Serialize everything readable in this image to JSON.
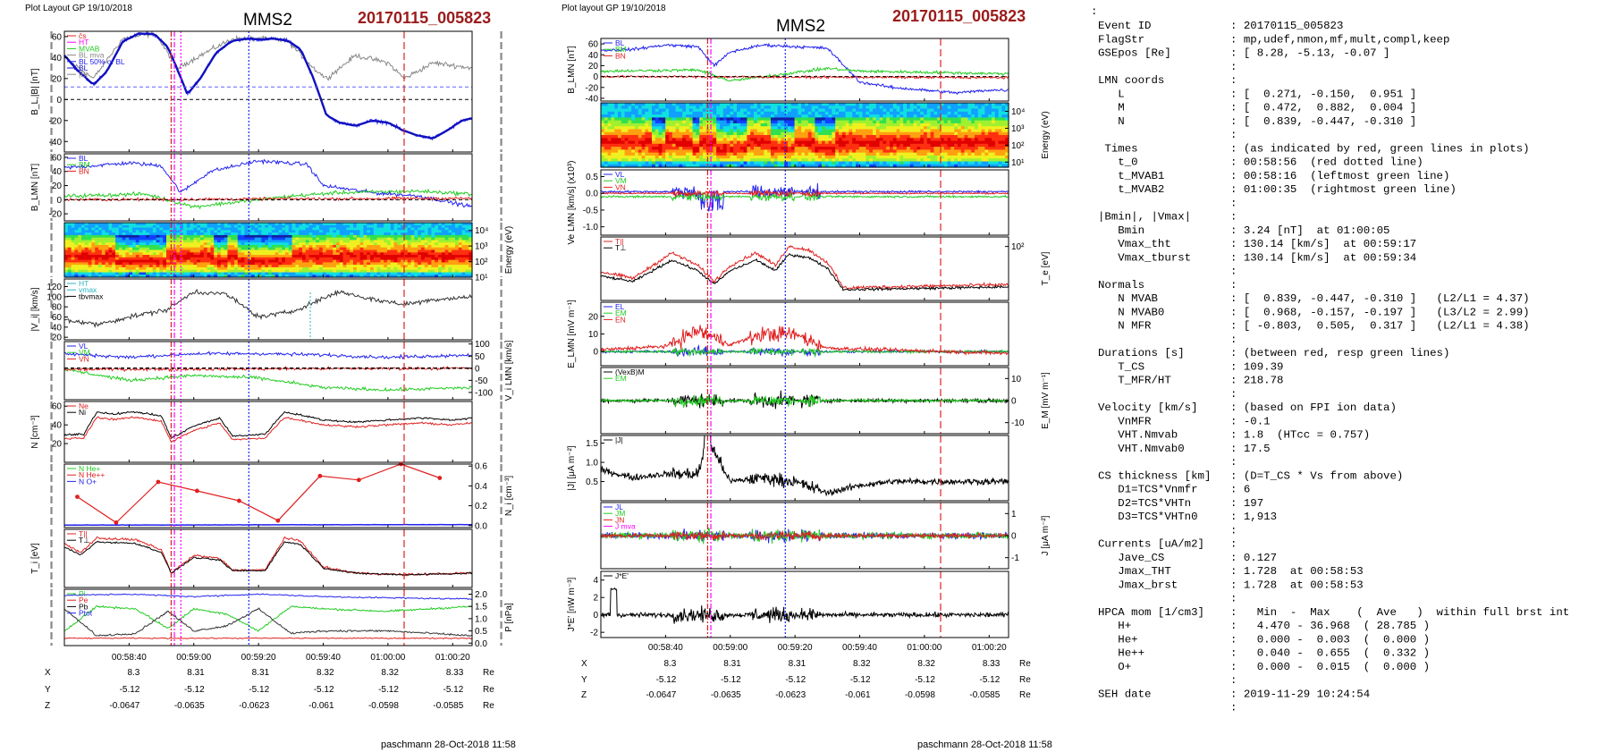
{
  "page": {
    "footer": "paschmann 28-Oct-2018 11:58",
    "colon": ":"
  },
  "left_plot": {
    "layout_label": "Plot Layout GP 19/10/2018",
    "spacecraft": "MMS2",
    "event": "20170115_005823",
    "time_ticks": [
      "00:58:40",
      "00:59:00",
      "00:59:20",
      "00:59:40",
      "01:00:00",
      "01:00:20"
    ],
    "panels": [
      {
        "ylabel": "B_L,|B| [nT]",
        "ylim": [
          -50,
          65
        ],
        "yticks": [
          "60",
          "40",
          "20",
          "0",
          "-20",
          "-40"
        ],
        "yvals": [
          60,
          40,
          20,
          0,
          -20,
          -40
        ],
        "legend": [
          "c̆s",
          "HT",
          "MVAB",
          "BL mva",
          "BL 50% of BL",
          "BL",
          "|B|"
        ],
        "legend_colors": [
          "#e02020",
          "#ff00ff",
          "#22cc22",
          "#888888",
          "#2222ee",
          "#1010c0",
          "#888888"
        ]
      },
      {
        "ylabel": "B_LMN [nT]",
        "ylim": [
          -30,
          65
        ],
        "yticks": [
          "60",
          "40",
          "20",
          "0",
          "-20"
        ],
        "yvals": [
          60,
          40,
          20,
          0,
          -20
        ],
        "legend": [
          "BL",
          "BM",
          "BN"
        ],
        "legend_colors": [
          "#2222ee",
          "#22cc22",
          "#e02020"
        ]
      },
      {
        "ylabel": "Energy (eV)",
        "ylim": [
          1,
          4.5
        ],
        "yticks": [
          "10⁴",
          "10³",
          "10²",
          "10¹"
        ],
        "yvals": [
          4,
          3,
          2,
          1
        ],
        "legend": [],
        "legend_colors": []
      },
      {
        "ylabel": "|V_i| [km/s]",
        "ylim": [
          15,
          135
        ],
        "yticks": [
          "120",
          "100",
          "80",
          "60",
          "40",
          "20"
        ],
        "yvals": [
          120,
          100,
          80,
          60,
          40,
          20
        ],
        "legend": [
          "HT",
          "vmax",
          "tbvmax"
        ],
        "legend_colors": [
          "#2ab5c0",
          "#2ab5c0",
          "#000000"
        ]
      },
      {
        "ylabel": "V_i LMN [km/s]",
        "ylim": [
          -130,
          110
        ],
        "yticks": [
          "100",
          "50",
          "0",
          "-50",
          "-100"
        ],
        "yvals": [
          100,
          50,
          0,
          -50,
          -100
        ],
        "legend": [
          "VL",
          "VM",
          "VN"
        ],
        "legend_colors": [
          "#2222ee",
          "#22cc22",
          "#e02020"
        ]
      },
      {
        "ylabel": "N [cm⁻³]",
        "ylim": [
          0,
          65
        ],
        "yticks": [
          "60",
          "40",
          "20"
        ],
        "yvals": [
          60,
          40,
          20
        ],
        "legend": [
          "Ne",
          "Ni"
        ],
        "legend_colors": [
          "#e02020",
          "#000000"
        ]
      },
      {
        "ylabel": "N_i [cm⁻³]",
        "ylim": [
          -0.02,
          0.62
        ],
        "yticks": [
          "0.6",
          "0.4",
          "0.2",
          "0.0"
        ],
        "yvals": [
          0.6,
          0.4,
          0.2,
          0.0
        ],
        "legend": [
          "N He+",
          "N He++",
          "N O+"
        ],
        "legend_colors": [
          "#22cc22",
          "#e02020",
          "#2222ee"
        ]
      },
      {
        "ylabel": "T_i [eV]",
        "ylim": [
          0,
          1
        ],
        "yticks": [],
        "yvals": [],
        "legend": [
          "T||",
          "T⊥"
        ],
        "legend_colors": [
          "#e02020",
          "#000000"
        ]
      },
      {
        "ylabel": "P [nPa]",
        "ylim": [
          -0.1,
          2.2
        ],
        "yticks": [
          "2.0",
          "1.5",
          "1.0",
          "0.5",
          "0.0"
        ],
        "yvals": [
          2.0,
          1.5,
          1.0,
          0.5,
          0.0
        ],
        "legend": [
          "Pi",
          "Pe",
          "Pb",
          "Ptot"
        ],
        "legend_colors": [
          "#22cc22",
          "#e02020",
          "#000000",
          "#2222ee"
        ]
      }
    ],
    "ephem_rows": [
      {
        "name": "X",
        "vals": [
          "8.3",
          "8.31",
          "8.31",
          "8.32",
          "8.32",
          "8.33"
        ],
        "unit": "Re"
      },
      {
        "name": "Y",
        "vals": [
          "-5.12",
          "-5.12",
          "-5.12",
          "-5.12",
          "-5.12",
          "-5.12"
        ],
        "unit": "Re"
      },
      {
        "name": "Z",
        "vals": [
          "-0.0647",
          "-0.0635",
          "-0.0623",
          "-0.061",
          "-0.0598",
          "-0.0585"
        ],
        "unit": "Re"
      }
    ]
  },
  "right_plot": {
    "layout_label": "Plot layout GP 19/10/2018",
    "spacecraft": "MMS2",
    "event": "20170115_005823",
    "time_ticks": [
      "00:58:40",
      "00:59:00",
      "00:59:20",
      "00:59:40",
      "01:00:00",
      "01:00:20"
    ],
    "panels": [
      {
        "ylabel": "B_LMN [nT]",
        "ylim": [
          -45,
          70
        ],
        "yticks": [
          "60",
          "40",
          "20",
          "0",
          "-20",
          "-40"
        ],
        "yvals": [
          60,
          40,
          20,
          0,
          -20,
          -40
        ],
        "legend": [
          "BL",
          "BM",
          "BN"
        ],
        "legend_colors": [
          "#2222ee",
          "#22cc22",
          "#e02020"
        ]
      },
      {
        "ylabel": "Energy (eV)",
        "ylim": [
          0.7,
          4.5
        ],
        "yticks": [
          "10⁴",
          "10³",
          "10²",
          "10¹"
        ],
        "yvals": [
          4,
          3,
          2,
          1
        ],
        "legend": [],
        "legend_colors": []
      },
      {
        "ylabel": "Ve LMN [km/s] (x10³)",
        "ylim": [
          -1.25,
          0.7
        ],
        "yticks": [
          "0.5",
          "0.0",
          "-0.5",
          "-1.0"
        ],
        "yvals": [
          0.5,
          0.0,
          -0.5,
          -1.0
        ],
        "legend": [
          "VL",
          "VM",
          "VN"
        ],
        "legend_colors": [
          "#2222ee",
          "#22cc22",
          "#e02020"
        ]
      },
      {
        "ylabel": "T_e [eV]",
        "ylim": [
          0,
          1
        ],
        "yticks": [
          "10²"
        ],
        "yvals": [
          0.85
        ],
        "legend": [
          "T||",
          "T⊥"
        ],
        "legend_colors": [
          "#e02020",
          "#000000"
        ]
      },
      {
        "ylabel": "E_LMN [mV m⁻¹]",
        "ylim": [
          -8,
          28
        ],
        "yticks": [
          "20",
          "10",
          "0"
        ],
        "yvals": [
          20,
          10,
          0
        ],
        "legend": [
          "EL",
          "EM",
          "EN"
        ],
        "legend_colors": [
          "#2222ee",
          "#22cc22",
          "#e02020"
        ]
      },
      {
        "ylabel": "E_M [mV m⁻¹]",
        "ylim": [
          -15,
          15
        ],
        "yticks": [
          "10",
          "0",
          "-10"
        ],
        "yvals": [
          10,
          0,
          -10
        ],
        "legend": [
          "(VexB)M",
          "EM"
        ],
        "legend_colors": [
          "#000000",
          "#22cc22"
        ]
      },
      {
        "ylabel": "|J| [μA m⁻²]",
        "ylim": [
          0,
          1.7
        ],
        "yticks": [
          "1.5",
          "1.0",
          "0.5"
        ],
        "yvals": [
          1.5,
          1.0,
          0.5
        ],
        "legend": [
          "|J|"
        ],
        "legend_colors": [
          "#000000"
        ]
      },
      {
        "ylabel": "J [μA m⁻²]",
        "ylim": [
          -1.5,
          1.5
        ],
        "yticks": [
          "1",
          "0",
          "-1"
        ],
        "yvals": [
          1,
          0,
          -1
        ],
        "legend": [
          "JL",
          "JM",
          "JN",
          "J mva"
        ],
        "legend_colors": [
          "#2222ee",
          "#22cc22",
          "#e02020",
          "#ff00ff"
        ]
      },
      {
        "ylabel": "J*E' [nW m⁻³]",
        "ylim": [
          -2.6,
          5
        ],
        "yticks": [
          "4",
          "2",
          "0",
          "-2"
        ],
        "yvals": [
          4,
          2,
          0,
          -2
        ],
        "legend": [
          "J*E'"
        ],
        "legend_colors": [
          "#000000"
        ]
      }
    ],
    "ephem_rows": [
      {
        "name": "X",
        "vals": [
          "8.3",
          "8.31",
          "8.31",
          "8.32",
          "8.32",
          "8.33"
        ],
        "unit": "Re"
      },
      {
        "name": "Y",
        "vals": [
          "-5.12",
          "-5.12",
          "-5.12",
          "-5.12",
          "-5.12",
          "-5.12"
        ],
        "unit": "Re"
      },
      {
        "name": "Z",
        "vals": [
          "-0.0647",
          "-0.0635",
          "-0.0623",
          "-0.061",
          "-0.0598",
          "-0.0585"
        ],
        "unit": "Re"
      }
    ]
  },
  "info_lines": [
    [
      "Event ID",
      ": 20170115_005823"
    ],
    [
      "FlagStr",
      ": mp,udef,nmon,mf,mult,compl,keep"
    ],
    [
      "GSEpos [Re]",
      ": [ 8.28, -5.13, -0.07 ]"
    ],
    [
      "",
      ":"
    ],
    [
      "LMN coords",
      ":"
    ],
    [
      "   L",
      ": [  0.271, -0.150,  0.951 ]"
    ],
    [
      "   M",
      ": [  0.472,  0.882,  0.004 ]"
    ],
    [
      "   N",
      ": [  0.839, -0.447, -0.310 ]"
    ],
    [
      "",
      ":"
    ],
    [
      " Times",
      ": (as indicated by red, green lines in plots)"
    ],
    [
      "   t_0",
      ": 00:58:56  (red dotted line)"
    ],
    [
      "   t_MVAB1",
      ": 00:58:16  (leftmost green line)"
    ],
    [
      "   t_MVAB2",
      ": 01:00:35  (rightmost green line)"
    ],
    [
      "",
      ":"
    ],
    [
      "|Bmin|, |Vmax|",
      ":"
    ],
    [
      "   Bmin",
      ": 3.24 [nT]  at 01:00:05"
    ],
    [
      "   Vmax_tht",
      ": 130.14 [km/s]  at 00:59:17"
    ],
    [
      "   Vmax_tburst",
      ": 130.14 [km/s]  at 00:59:34"
    ],
    [
      "",
      ":"
    ],
    [
      "Normals",
      ":"
    ],
    [
      "   N MVAB",
      ": [  0.839, -0.447, -0.310 ]   (L2/L1 = 4.37)"
    ],
    [
      "   N MVAB0",
      ": [  0.968, -0.157, -0.197 ]   (L3/L2 = 2.99)"
    ],
    [
      "   N MFR",
      ": [ -0.803,  0.505,  0.317 ]   (L2/L1 = 4.38)"
    ],
    [
      "",
      ":"
    ],
    [
      "Durations [s]",
      ": (between red, resp green lines)"
    ],
    [
      "   T_CS",
      ": 109.39"
    ],
    [
      "   T_MFR/HT",
      ": 218.78"
    ],
    [
      "",
      ":"
    ],
    [
      "Velocity [km/s]",
      ": (based on FPI ion data)"
    ],
    [
      "   VnMFR",
      ": -0.1"
    ],
    [
      "   VHT.Nmvab",
      ": 1.8  (HTcc = 0.757)"
    ],
    [
      "   VHT.Nmvab0",
      ": 17.5"
    ],
    [
      "",
      ":"
    ],
    [
      "CS thickness [km]",
      ": (D=T_CS * Vs from above)"
    ],
    [
      "   D1=TCS*Vnmfr",
      ": 6"
    ],
    [
      "   D2=TCS*VHTn",
      ": 197"
    ],
    [
      "   D3=TCS*VHTn0",
      ": 1,913"
    ],
    [
      "",
      ":"
    ],
    [
      "Currents [uA/m2]",
      ":"
    ],
    [
      "   Jave_CS",
      ": 0.127"
    ],
    [
      "   Jmax_THT",
      ": 1.728  at 00:58:53"
    ],
    [
      "   Jmax_brst",
      ": 1.728  at 00:58:53"
    ],
    [
      "",
      ":"
    ],
    [
      "HPCA mom [1/cm3]",
      ":   Min  -  Max    (  Ave   )  within full brst int"
    ],
    [
      "   H+",
      ":   4.470 - 36.968  ( 28.785 )"
    ],
    [
      "   He+",
      ":   0.000 -  0.003  (  0.000 )"
    ],
    [
      "   He++",
      ":   0.040 -  0.655  (  0.332 )"
    ],
    [
      "   O+",
      ":   0.000 -  0.015  (  0.000 )"
    ],
    [
      "",
      ":"
    ],
    [
      "SEH date",
      ": 2019-11-29 10:24:54"
    ],
    [
      "",
      ":"
    ]
  ],
  "chart_data": [
    {
      "type": "line",
      "title": "MMS2",
      "subtitle": "20170115_005823",
      "x_unit": "UT",
      "xlim": [
        "00:58:20",
        "01:00:26"
      ],
      "x_ticks": [
        "00:58:40",
        "00:59:00",
        "00:59:20",
        "00:59:40",
        "01:00:00",
        "01:00:20"
      ],
      "vertical_markers": [
        {
          "time": "00:58:16",
          "color": "#888888",
          "style": "dashed"
        },
        {
          "time": "00:58:53",
          "color": "#e02020",
          "style": "dashdot"
        },
        {
          "time": "00:58:54",
          "color": "#ff00ff",
          "style": "dashdot"
        },
        {
          "time": "00:58:56",
          "color": "#ff00ff",
          "style": "dotted"
        },
        {
          "time": "00:59:17",
          "color": "#2222ee",
          "style": "dotted"
        },
        {
          "time": "01:00:05",
          "color": "#e02020",
          "style": "dashed"
        },
        {
          "time": "01:00:35",
          "color": "#888888",
          "style": "dashed"
        }
      ],
      "series": [
        {
          "name": "BL",
          "panel": 0,
          "t": [
            "00:58:20",
            "00:58:24",
            "00:58:29",
            "00:58:33",
            "00:58:38",
            "00:58:43",
            "00:58:48",
            "00:58:52",
            "00:58:55",
            "00:58:58",
            "00:59:02",
            "00:59:07",
            "00:59:12",
            "00:59:17",
            "00:59:21",
            "00:59:25",
            "00:59:29",
            "00:59:33",
            "00:59:37",
            "00:59:41",
            "00:59:45",
            "00:59:50",
            "00:59:55",
            "01:00:00",
            "01:00:05",
            "01:00:10",
            "01:00:14",
            "01:00:18",
            "01:00:23",
            "01:00:26"
          ],
          "v": [
            42,
            28,
            14,
            26,
            55,
            63,
            62,
            50,
            28,
            5,
            20,
            45,
            56,
            58,
            57,
            58,
            56,
            48,
            20,
            -15,
            -22,
            -25,
            -20,
            -22,
            -30,
            -35,
            -37,
            -30,
            -20,
            -18
          ]
        },
        {
          "name": "|B|",
          "panel": 0,
          "t": [
            "00:58:20",
            "00:58:29",
            "00:58:38",
            "00:58:48",
            "00:58:55",
            "00:59:02",
            "00:59:12",
            "00:59:21",
            "00:59:29",
            "00:59:37",
            "00:59:41",
            "00:59:50",
            "01:00:00",
            "01:00:05",
            "01:00:14",
            "01:00:26"
          ],
          "v": [
            40,
            20,
            58,
            63,
            30,
            42,
            58,
            58,
            56,
            30,
            20,
            42,
            35,
            20,
            35,
            30
          ]
        },
        {
          "name": "Ne",
          "panel": 5,
          "t": [
            "00:58:20",
            "00:58:26",
            "00:58:30",
            "00:58:35",
            "00:58:42",
            "00:58:50",
            "00:58:53",
            "00:59:00",
            "00:59:08",
            "00:59:12",
            "00:59:22",
            "00:59:28",
            "00:59:33",
            "00:59:40",
            "00:59:50",
            "01:00:00",
            "01:00:10",
            "01:00:20",
            "01:00:26"
          ],
          "v": [
            25,
            26,
            48,
            46,
            48,
            44,
            22,
            34,
            42,
            24,
            26,
            48,
            45,
            40,
            38,
            40,
            42,
            40,
            42
          ]
        },
        {
          "name": "N He++",
          "panel": 6,
          "t": [
            "00:58:24",
            "00:58:36",
            "00:58:49",
            "00:59:01",
            "00:59:14",
            "00:59:26",
            "00:59:39",
            "00:59:51",
            "01:00:04",
            "01:00:16"
          ],
          "v": [
            0.29,
            0.03,
            0.44,
            0.35,
            0.25,
            0.05,
            0.5,
            0.46,
            0.62,
            0.48
          ]
        }
      ]
    },
    {
      "type": "line",
      "title": "MMS2",
      "subtitle": "20170115_005823",
      "x_unit": "UT",
      "xlim": [
        "00:58:20",
        "01:00:26"
      ],
      "x_ticks": [
        "00:58:40",
        "00:59:00",
        "00:59:20",
        "00:59:40",
        "01:00:00",
        "01:00:20"
      ],
      "series": [
        {
          "name": "BL",
          "panel": 0,
          "t": [
            "00:58:20",
            "00:58:30",
            "00:58:40",
            "00:58:50",
            "00:58:55",
            "00:59:00",
            "00:59:10",
            "00:59:20",
            "00:59:30",
            "00:59:40",
            "00:59:50",
            "01:00:00",
            "01:00:10",
            "01:00:20",
            "01:00:26"
          ],
          "v": [
            48,
            50,
            58,
            55,
            20,
            45,
            58,
            55,
            52,
            -10,
            -20,
            -25,
            -30,
            -25,
            -25
          ]
        },
        {
          "name": "|J|",
          "panel": 6,
          "t": [
            "00:58:20",
            "00:58:30",
            "00:58:40",
            "00:58:50",
            "00:58:53",
            "00:59:00",
            "00:59:10",
            "00:59:20",
            "00:59:30",
            "00:59:40",
            "00:59:50",
            "01:00:00",
            "01:00:10",
            "01:00:20"
          ],
          "v": [
            0.8,
            0.6,
            0.7,
            0.7,
            1.6,
            0.5,
            0.6,
            0.5,
            0.2,
            0.4,
            0.5,
            0.5,
            0.5,
            0.5
          ]
        }
      ]
    }
  ]
}
